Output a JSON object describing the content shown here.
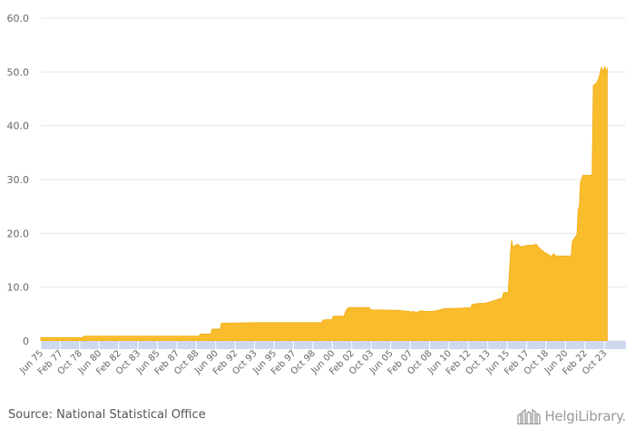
{
  "chart_data": {
    "type": "area",
    "title": "",
    "xlabel": "",
    "ylabel": "",
    "ylim": [
      0,
      60
    ],
    "yticks": [
      "0",
      "10.0",
      "20.0",
      "30.0",
      "40.0",
      "50.0",
      "60.0"
    ],
    "x_start": 1975.42,
    "x_end": 2025.6,
    "x_ticks": [
      "Jun 75",
      "Feb 77",
      "Oct 78",
      "Jun 80",
      "Feb 82",
      "Oct 83",
      "Jun 85",
      "Feb 87",
      "Oct 88",
      "Jun 90",
      "Feb 92",
      "Oct 93",
      "Jun 95",
      "Feb 97",
      "Oct 98",
      "Jun 00",
      "Feb 02",
      "Oct 03",
      "Jun 05",
      "Feb 07",
      "Oct 08",
      "Jun 10",
      "Feb 12",
      "Oct 13",
      "Jun 15",
      "Feb 17",
      "Oct 18",
      "Jun 20",
      "Feb 22",
      "Oct 23"
    ],
    "series": [
      {
        "name": "Value",
        "color": "#f9bc2d",
        "points": [
          [
            1975.42,
            0.6
          ],
          [
            1979.0,
            0.6
          ],
          [
            1979.1,
            0.9
          ],
          [
            1989.0,
            0.9
          ],
          [
            1989.1,
            1.3
          ],
          [
            1990.0,
            1.3
          ],
          [
            1990.1,
            2.2
          ],
          [
            1990.8,
            2.2
          ],
          [
            1990.9,
            3.3
          ],
          [
            1994.0,
            3.4
          ],
          [
            1999.5,
            3.4
          ],
          [
            1999.6,
            3.9
          ],
          [
            2000.4,
            4.0
          ],
          [
            2000.5,
            4.6
          ],
          [
            2001.4,
            4.6
          ],
          [
            2001.6,
            5.7
          ],
          [
            2001.8,
            6.2
          ],
          [
            2003.6,
            6.2
          ],
          [
            2003.7,
            5.8
          ],
          [
            2006.0,
            5.7
          ],
          [
            2006.5,
            5.6
          ],
          [
            2007.0,
            5.5
          ],
          [
            2007.2,
            5.4
          ],
          [
            2007.4,
            5.5
          ],
          [
            2007.6,
            5.3
          ],
          [
            2008.0,
            5.6
          ],
          [
            2008.5,
            5.5
          ],
          [
            2009.0,
            5.5
          ],
          [
            2009.5,
            5.7
          ],
          [
            2010.0,
            6.0
          ],
          [
            2011.5,
            6.1
          ],
          [
            2012.3,
            6.2
          ],
          [
            2012.4,
            6.8
          ],
          [
            2013.0,
            7.0
          ],
          [
            2013.5,
            7.0
          ],
          [
            2014.3,
            7.5
          ],
          [
            2015.0,
            8.0
          ],
          [
            2015.1,
            9.0
          ],
          [
            2015.5,
            9.0
          ],
          [
            2015.7,
            16.5
          ],
          [
            2015.8,
            18.8
          ],
          [
            2015.9,
            17.5
          ],
          [
            2016.3,
            18.0
          ],
          [
            2016.6,
            17.5
          ],
          [
            2017.2,
            17.8
          ],
          [
            2017.6,
            17.8
          ],
          [
            2017.9,
            18.0
          ],
          [
            2018.2,
            17.2
          ],
          [
            2018.6,
            16.5
          ],
          [
            2019.0,
            16.0
          ],
          [
            2019.2,
            15.7
          ],
          [
            2019.4,
            16.2
          ],
          [
            2019.6,
            15.8
          ],
          [
            2020.9,
            15.8
          ],
          [
            2021.0,
            18.5
          ],
          [
            2021.4,
            19.8
          ],
          [
            2021.5,
            24.5
          ],
          [
            2021.6,
            25.0
          ],
          [
            2021.7,
            29.5
          ],
          [
            2021.9,
            30.8
          ],
          [
            2022.7,
            30.8
          ],
          [
            2022.8,
            47.5
          ],
          [
            2023.1,
            48.0
          ],
          [
            2023.3,
            49.0
          ],
          [
            2023.5,
            51.0
          ],
          [
            2023.6,
            50.0
          ],
          [
            2023.8,
            51.0
          ],
          [
            2023.9,
            49.8
          ],
          [
            2024.0,
            50.8
          ]
        ]
      }
    ]
  },
  "footer": {
    "source": "Source: National Statistical Office",
    "brand": "HelgiLibrary."
  },
  "colors": {
    "area": "#f9bc2d",
    "area_stroke": "#f2ac13",
    "axis_band": "#cdd9ee",
    "grid": "#e6e6e6"
  }
}
